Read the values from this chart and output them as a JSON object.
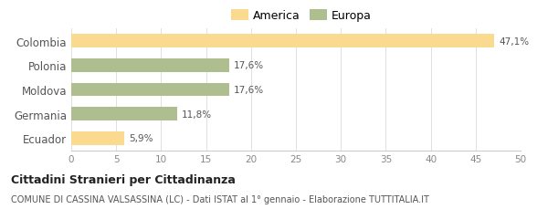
{
  "categories": [
    "Colombia",
    "Polonia",
    "Moldova",
    "Germania",
    "Ecuador"
  ],
  "values": [
    47.1,
    17.6,
    17.6,
    11.8,
    5.9
  ],
  "labels": [
    "47,1%",
    "17,6%",
    "17,6%",
    "11,8%",
    "5,9%"
  ],
  "colors": [
    "#FADA8E",
    "#AFBE8F",
    "#AFBE8F",
    "#AFBE8F",
    "#FADA8E"
  ],
  "legend": [
    {
      "label": "America",
      "color": "#FADA8E"
    },
    {
      "label": "Europa",
      "color": "#AFBE8F"
    }
  ],
  "xlim": [
    0,
    50
  ],
  "xticks": [
    0,
    5,
    10,
    15,
    20,
    25,
    30,
    35,
    40,
    45,
    50
  ],
  "title": "Cittadini Stranieri per Cittadinanza",
  "subtitle": "COMUNE DI CASSINA VALSASSINA (LC) - Dati ISTAT al 1° gennaio - Elaborazione TUTTITALIA.IT",
  "background_color": "#ffffff",
  "bar_height": 0.55
}
